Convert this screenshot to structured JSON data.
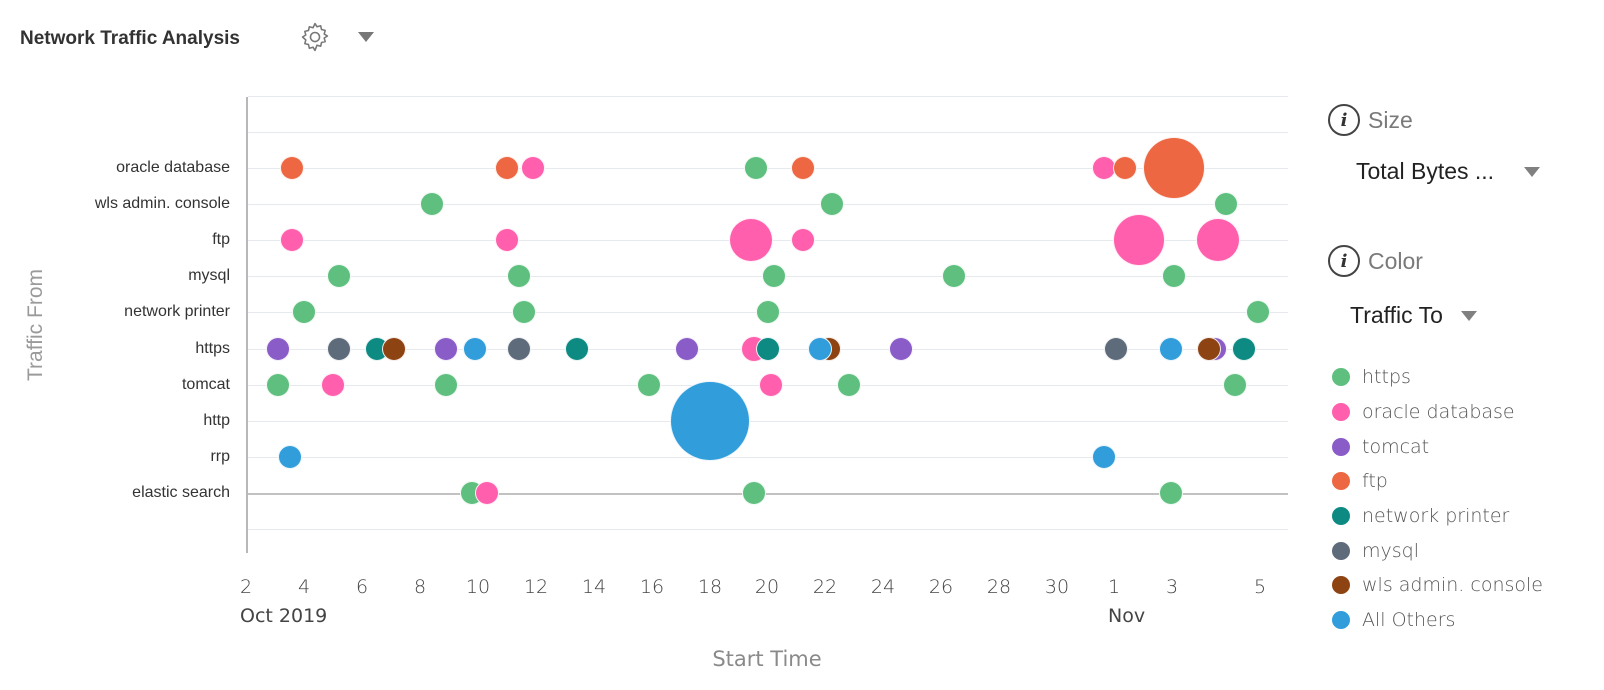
{
  "header": {
    "title": "Network Traffic Analysis",
    "settings_icon": "gear-icon",
    "menu_icon": "caret-down-icon"
  },
  "size_panel": {
    "label": "Size",
    "icon": "info-icon",
    "selected": "Total Bytes ..."
  },
  "color_panel": {
    "label": "Color",
    "icon": "info-icon",
    "selected": "Traffic To"
  },
  "legend": [
    {
      "label": "https",
      "color": "#5fbf7f"
    },
    {
      "label": "oracle database",
      "color": "#ff5fac"
    },
    {
      "label": "tomcat",
      "color": "#8a5cc8"
    },
    {
      "label": "ftp",
      "color": "#ec6742"
    },
    {
      "label": "network printer",
      "color": "#0d8a82"
    },
    {
      "label": "mysql",
      "color": "#5e6b7b"
    },
    {
      "label": "wls admin. console",
      "color": "#8e4313"
    },
    {
      "label": "All Others",
      "color": "#319ddb"
    }
  ],
  "chart_data": {
    "type": "scatter",
    "subtype": "bubble",
    "title": "Network Traffic Analysis",
    "xlabel": "Start Time",
    "ylabel": "Traffic From",
    "x_tick_labels": [
      "2",
      "4",
      "6",
      "8",
      "10",
      "12",
      "14",
      "16",
      "18",
      "20",
      "22",
      "24",
      "26",
      "28",
      "30",
      "1",
      "3",
      "5"
    ],
    "x_group_labels": [
      {
        "label": "Oct 2019",
        "at": "2"
      },
      {
        "label": "Nov",
        "at": "1"
      }
    ],
    "x_range": [
      "2019-10-02",
      "2019-11-05"
    ],
    "y_categories": [
      "oracle database",
      "wls admin. console",
      "ftp",
      "mysql",
      "network printer",
      "https",
      "tomcat",
      "http",
      "rrp",
      "elastic search"
    ],
    "size_by": "Total Bytes",
    "color_by": "Traffic To",
    "grid": true,
    "legend_position": "right",
    "points": [
      {
        "from": "oracle database",
        "day": 3.6,
        "to": "ftp",
        "r": 12
      },
      {
        "from": "oracle database",
        "day": 11.0,
        "to": "ftp",
        "r": 12
      },
      {
        "from": "oracle database",
        "day": 11.9,
        "to": "oracle database",
        "r": 12
      },
      {
        "from": "oracle database",
        "day": 19.6,
        "to": "https",
        "r": 12
      },
      {
        "from": "oracle database",
        "day": 21.2,
        "to": "ftp",
        "r": 12
      },
      {
        "from": "oracle database",
        "day": 31.6,
        "to": "oracle database",
        "r": 12
      },
      {
        "from": "oracle database",
        "day": 32.3,
        "to": "ftp",
        "r": 12
      },
      {
        "from": "oracle database",
        "day": 34.0,
        "to": "ftp",
        "r": 31
      },
      {
        "from": "wls admin. console",
        "day": 8.4,
        "to": "https",
        "r": 12
      },
      {
        "from": "wls admin. console",
        "day": 22.2,
        "to": "https",
        "r": 12
      },
      {
        "from": "wls admin. console",
        "day": 35.8,
        "to": "https",
        "r": 12
      },
      {
        "from": "ftp",
        "day": 3.6,
        "to": "oracle database",
        "r": 12
      },
      {
        "from": "ftp",
        "day": 11.0,
        "to": "oracle database",
        "r": 12
      },
      {
        "from": "ftp",
        "day": 19.4,
        "to": "oracle database",
        "r": 22
      },
      {
        "from": "ftp",
        "day": 21.2,
        "to": "oracle database",
        "r": 12
      },
      {
        "from": "ftp",
        "day": 32.8,
        "to": "oracle database",
        "r": 26
      },
      {
        "from": "ftp",
        "day": 35.5,
        "to": "oracle database",
        "r": 22
      },
      {
        "from": "mysql",
        "day": 5.2,
        "to": "https",
        "r": 12
      },
      {
        "from": "mysql",
        "day": 11.4,
        "to": "https",
        "r": 12
      },
      {
        "from": "mysql",
        "day": 20.2,
        "to": "https",
        "r": 12
      },
      {
        "from": "mysql",
        "day": 26.4,
        "to": "https",
        "r": 12
      },
      {
        "from": "mysql",
        "day": 34.0,
        "to": "https",
        "r": 12
      },
      {
        "from": "network printer",
        "day": 4.0,
        "to": "https",
        "r": 12
      },
      {
        "from": "network printer",
        "day": 11.6,
        "to": "https",
        "r": 12
      },
      {
        "from": "network printer",
        "day": 20.0,
        "to": "https",
        "r": 12
      },
      {
        "from": "network printer",
        "day": 36.9,
        "to": "https",
        "r": 12
      },
      {
        "from": "https",
        "day": 3.1,
        "to": "tomcat",
        "r": 12
      },
      {
        "from": "https",
        "day": 5.2,
        "to": "mysql",
        "r": 12
      },
      {
        "from": "https",
        "day": 6.5,
        "to": "network printer",
        "r": 12
      },
      {
        "from": "https",
        "day": 7.1,
        "to": "wls admin. console",
        "r": 12
      },
      {
        "from": "https",
        "day": 8.9,
        "to": "tomcat",
        "r": 12
      },
      {
        "from": "https",
        "day": 9.9,
        "to": "All Others",
        "r": 12
      },
      {
        "from": "https",
        "day": 11.4,
        "to": "mysql",
        "r": 12
      },
      {
        "from": "https",
        "day": 13.4,
        "to": "network printer",
        "r": 12
      },
      {
        "from": "https",
        "day": 17.2,
        "to": "tomcat",
        "r": 12
      },
      {
        "from": "https",
        "day": 19.5,
        "to": "oracle database",
        "r": 13
      },
      {
        "from": "https",
        "day": 20.0,
        "to": "network printer",
        "r": 12
      },
      {
        "from": "https",
        "day": 22.1,
        "to": "wls admin. console",
        "r": 12
      },
      {
        "from": "https",
        "day": 21.8,
        "to": "All Others",
        "r": 12
      },
      {
        "from": "https",
        "day": 24.6,
        "to": "tomcat",
        "r": 12
      },
      {
        "from": "https",
        "day": 32.0,
        "to": "mysql",
        "r": 12
      },
      {
        "from": "https",
        "day": 33.9,
        "to": "All Others",
        "r": 12
      },
      {
        "from": "https",
        "day": 35.4,
        "to": "tomcat",
        "r": 12
      },
      {
        "from": "https",
        "day": 35.2,
        "to": "wls admin. console",
        "r": 12
      },
      {
        "from": "https",
        "day": 36.4,
        "to": "network printer",
        "r": 12
      },
      {
        "from": "tomcat",
        "day": 3.1,
        "to": "https",
        "r": 12
      },
      {
        "from": "tomcat",
        "day": 5.0,
        "to": "oracle database",
        "r": 12
      },
      {
        "from": "tomcat",
        "day": 8.9,
        "to": "https",
        "r": 12
      },
      {
        "from": "tomcat",
        "day": 15.9,
        "to": "https",
        "r": 12
      },
      {
        "from": "tomcat",
        "day": 20.1,
        "to": "oracle database",
        "r": 12
      },
      {
        "from": "tomcat",
        "day": 22.8,
        "to": "https",
        "r": 12
      },
      {
        "from": "tomcat",
        "day": 36.1,
        "to": "https",
        "r": 12
      },
      {
        "from": "http",
        "day": 18.0,
        "to": "All Others",
        "r": 40
      },
      {
        "from": "rrp",
        "day": 3.5,
        "to": "All Others",
        "r": 12
      },
      {
        "from": "rrp",
        "day": 31.6,
        "to": "All Others",
        "r": 12
      },
      {
        "from": "elastic search",
        "day": 9.8,
        "to": "https",
        "r": 12
      },
      {
        "from": "elastic search",
        "day": 10.3,
        "to": "oracle database",
        "r": 12
      },
      {
        "from": "elastic search",
        "day": 19.5,
        "to": "https",
        "r": 12
      },
      {
        "from": "elastic search",
        "day": 33.9,
        "to": "https",
        "r": 12
      }
    ]
  }
}
